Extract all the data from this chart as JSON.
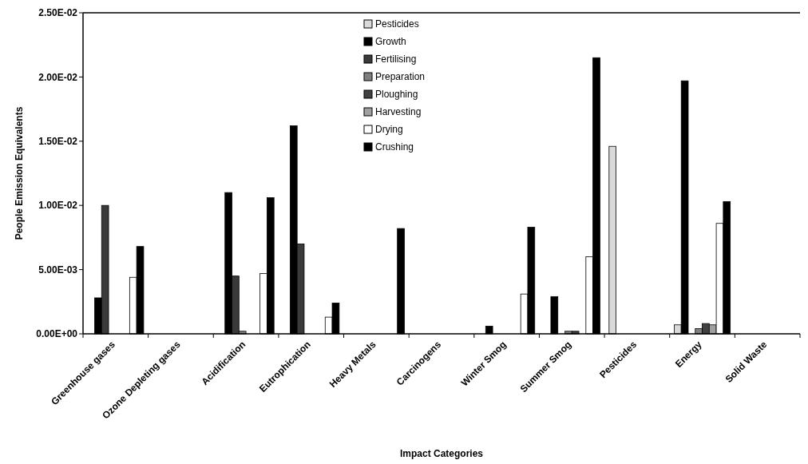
{
  "chart_data": {
    "type": "bar",
    "xlabel": "Impact Categories",
    "ylabel": "People Emission Equivalents",
    "categories": [
      "Greenhouse gases",
      "Ozone Depleting gases",
      "Acidification",
      "Eutrophication",
      "Heavy Metals",
      "Carcinogens",
      "Winter Smog",
      "Summer Smog",
      "Pesticides",
      "Energy",
      "Solid Waste"
    ],
    "series": [
      {
        "name": "Pesticides",
        "color": "#d9d9d9",
        "values": [
          0,
          0,
          0,
          0,
          0,
          0,
          0,
          0,
          0.0146,
          0.0007,
          0
        ]
      },
      {
        "name": "Growth",
        "color": "#000000",
        "values": [
          0.0028,
          0,
          0.011,
          0.0162,
          0,
          0,
          0.0006,
          0.0029,
          0,
          0.0197,
          0
        ]
      },
      {
        "name": "Fertilising",
        "color": "#3a3a3a",
        "values": [
          0.01,
          0,
          0.0045,
          0.007,
          0,
          0,
          0,
          0,
          0,
          0,
          0
        ]
      },
      {
        "name": "Preparation",
        "color": "#808080",
        "values": [
          0,
          0,
          0.0002,
          0,
          0,
          0,
          0,
          0.0002,
          0,
          0.0004,
          0
        ]
      },
      {
        "name": "Ploughing",
        "color": "#404040",
        "values": [
          0,
          0,
          0,
          0,
          0,
          0,
          0,
          0.0002,
          0,
          0.0008,
          0
        ]
      },
      {
        "name": "Harvesting",
        "color": "#a0a0a0",
        "values": [
          0,
          0,
          0,
          0,
          0,
          0,
          0,
          0,
          0,
          0.0007,
          0
        ]
      },
      {
        "name": "Drying",
        "color": "#ffffff",
        "values": [
          0.0044,
          0,
          0.0047,
          0.0013,
          0,
          0,
          0.0031,
          0.006,
          0,
          0.0086,
          0
        ]
      },
      {
        "name": "Crushing",
        "color": "#000000",
        "values": [
          0.0068,
          0,
          0.0106,
          0.0024,
          0.0082,
          0,
          0.0083,
          0.0215,
          0,
          0.0103,
          0
        ]
      }
    ],
    "ylim": [
      0,
      0.025
    ],
    "yticks": [
      {
        "value": 0,
        "label": "0.00E+00"
      },
      {
        "value": 0.005,
        "label": "5.00E-03"
      },
      {
        "value": 0.01,
        "label": "1.00E-02"
      },
      {
        "value": 0.015,
        "label": "1.50E-02"
      },
      {
        "value": 0.02,
        "label": "2.00E-02"
      },
      {
        "value": 0.025,
        "label": "2.50E-02"
      }
    ],
    "legend": "top",
    "grid": false
  }
}
